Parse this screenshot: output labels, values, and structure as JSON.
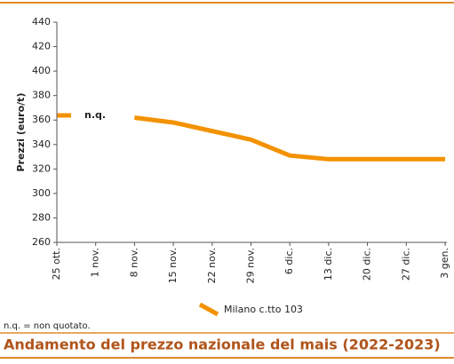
{
  "chart_data": {
    "type": "line",
    "title": "Andamento del prezzo nazionale del mais (2022-2023)",
    "y_label": "Prezzi (euro/t)",
    "note": "n.q. = non quotato.",
    "annotation": "n.q.",
    "categories": [
      "25 ott.",
      "1 nov.",
      "8 nov.",
      "15 nov.",
      "22 nov.",
      "29 nov.",
      "6 dic.",
      "13 dic.",
      "20 dic.",
      "27 dic.",
      "3 gen."
    ],
    "series": [
      {
        "name": "Milano  c.tto 103",
        "color": "#f39200",
        "values": [
          null,
          null,
          362,
          358,
          351,
          344,
          331,
          328,
          328,
          328,
          328
        ]
      }
    ],
    "ylim": [
      260,
      440
    ],
    "yticks": [
      260,
      280,
      300,
      320,
      340,
      360,
      380,
      400,
      420,
      440
    ]
  }
}
